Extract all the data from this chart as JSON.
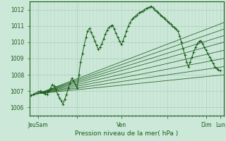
{
  "bg_color": "#cce8d8",
  "grid_major_color": "#a8d8c0",
  "grid_minor_color": "#b8e0cc",
  "line_color": "#1a5c1a",
  "tick_color": "#1a5c1a",
  "xlabel_color": "#1a5c1a",
  "ylim": [
    1005.5,
    1012.5
  ],
  "xlim": [
    0,
    110
  ],
  "yticks": [
    1006,
    1007,
    1008,
    1009,
    1010,
    1011,
    1012
  ],
  "xtick_positions": [
    5,
    27,
    52,
    78,
    100,
    108
  ],
  "xtick_labels": [
    "JeuSam",
    "",
    "Ven",
    "",
    "Dim",
    "Lun"
  ],
  "xlabel": "Pression niveau de la mer( hPa )",
  "fan_origin_x": 5,
  "fan_origin_y": 1006.85,
  "fan_ends": [
    [
      110,
      1011.2
    ],
    [
      110,
      1010.8
    ],
    [
      110,
      1010.4
    ],
    [
      110,
      1010.0
    ],
    [
      110,
      1009.5
    ],
    [
      110,
      1009.0
    ],
    [
      110,
      1008.5
    ],
    [
      110,
      1008.0
    ]
  ],
  "main_line_x": [
    0,
    1,
    2,
    3,
    4,
    5,
    6,
    7,
    8,
    9,
    10,
    11,
    12,
    13,
    14,
    15,
    16,
    17,
    18,
    19,
    20,
    21,
    22,
    23,
    24,
    25,
    26,
    27,
    28,
    29,
    30,
    31,
    32,
    33,
    34,
    35,
    36,
    37,
    38,
    39,
    40,
    41,
    42,
    43,
    44,
    45,
    46,
    47,
    48,
    49,
    50,
    51,
    52,
    53,
    54,
    55,
    56,
    57,
    58,
    59,
    60,
    61,
    62,
    63,
    64,
    65,
    66,
    67,
    68,
    69,
    70,
    71,
    72,
    73,
    74,
    75,
    76,
    77,
    78,
    79,
    80,
    81,
    82,
    83,
    84,
    85,
    86,
    87,
    88,
    89,
    90,
    91,
    92,
    93,
    94,
    95,
    96,
    97,
    98,
    99,
    100,
    101,
    102,
    103,
    104,
    105,
    106,
    107,
    108
  ],
  "main_line_y": [
    1006.7,
    1006.75,
    1006.8,
    1006.85,
    1006.9,
    1006.95,
    1007.0,
    1006.95,
    1006.9,
    1006.85,
    1006.8,
    1007.0,
    1007.2,
    1007.4,
    1007.3,
    1007.1,
    1006.8,
    1006.6,
    1006.4,
    1006.2,
    1006.5,
    1006.8,
    1007.2,
    1007.5,
    1007.8,
    1007.6,
    1007.4,
    1007.2,
    1008.0,
    1008.8,
    1009.3,
    1009.8,
    1010.3,
    1010.7,
    1010.85,
    1010.6,
    1010.35,
    1010.1,
    1009.8,
    1009.55,
    1009.7,
    1009.9,
    1010.2,
    1010.5,
    1010.75,
    1010.9,
    1011.0,
    1011.05,
    1010.8,
    1010.55,
    1010.3,
    1010.1,
    1009.85,
    1010.1,
    1010.4,
    1010.7,
    1011.0,
    1011.2,
    1011.4,
    1011.5,
    1011.6,
    1011.7,
    1011.8,
    1011.85,
    1011.9,
    1012.0,
    1012.05,
    1012.1,
    1012.15,
    1012.2,
    1012.1,
    1012.0,
    1011.9,
    1011.8,
    1011.7,
    1011.6,
    1011.5,
    1011.4,
    1011.3,
    1011.2,
    1011.1,
    1011.0,
    1010.9,
    1010.8,
    1010.7,
    1010.4,
    1010.0,
    1009.6,
    1009.2,
    1008.8,
    1008.5,
    1008.8,
    1009.1,
    1009.4,
    1009.7,
    1009.9,
    1010.05,
    1010.1,
    1009.9,
    1009.7,
    1009.5,
    1009.3,
    1009.1,
    1008.9,
    1008.7,
    1008.5,
    1008.4,
    1008.3,
    1008.25
  ]
}
